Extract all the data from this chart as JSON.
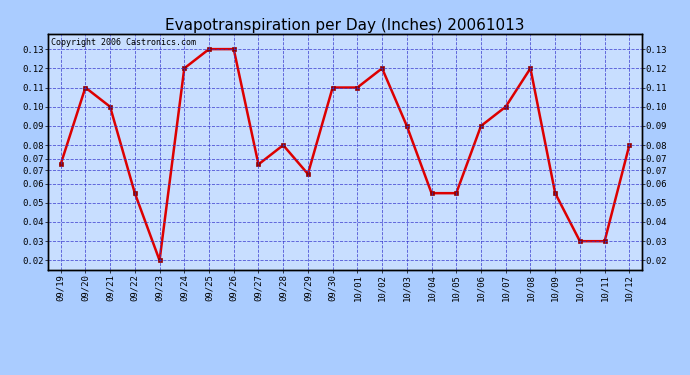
{
  "title": "Evapotranspiration per Day (Inches) 20061013",
  "copyright_text": "Copyright 2006 Castronics.com",
  "dates": [
    "09/19",
    "09/20",
    "09/21",
    "09/22",
    "09/23",
    "09/24",
    "09/25",
    "09/26",
    "09/27",
    "09/28",
    "09/29",
    "09/30",
    "10/01",
    "10/02",
    "10/03",
    "10/04",
    "10/05",
    "10/06",
    "10/07",
    "10/08",
    "10/09",
    "10/10",
    "10/11",
    "10/12"
  ],
  "values": [
    0.07,
    0.11,
    0.1,
    0.055,
    0.02,
    0.12,
    0.13,
    0.13,
    0.07,
    0.08,
    0.065,
    0.11,
    0.11,
    0.12,
    0.09,
    0.055,
    0.055,
    0.09,
    0.1,
    0.12,
    0.055,
    0.03,
    0.03,
    0.08
  ],
  "ylim_low": 0.015,
  "ylim_high": 0.138,
  "ytick_vals": [
    0.02,
    0.03,
    0.04,
    0.05,
    0.06,
    0.07,
    0.07,
    0.08,
    0.09,
    0.1,
    0.11,
    0.12,
    0.13
  ],
  "ytick_positions": [
    0.02,
    0.03,
    0.04,
    0.05,
    0.06,
    0.067,
    0.073,
    0.08,
    0.09,
    0.1,
    0.11,
    0.12,
    0.13
  ],
  "line_color": "#dd0000",
  "marker_color": "#990000",
  "fig_bg_color": "#aaccff",
  "plot_bg_color": "#c8deff",
  "grid_color": "#3333cc",
  "axis_color": "#000000",
  "title_fontsize": 11,
  "tick_fontsize": 6.5,
  "copyright_fontsize": 6
}
